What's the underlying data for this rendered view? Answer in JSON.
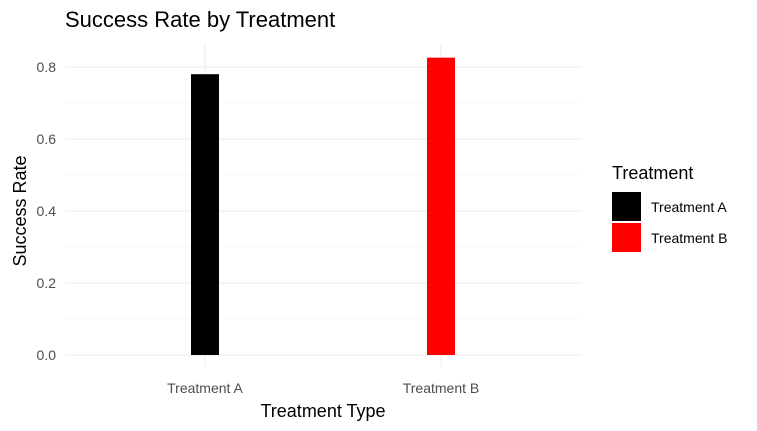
{
  "chart_data": {
    "type": "bar",
    "title": "Success Rate by Treatment",
    "xlabel": "Treatment Type",
    "ylabel": "Success Rate",
    "categories": [
      "Treatment A",
      "Treatment B"
    ],
    "values": [
      0.78,
      0.826
    ],
    "colors": [
      "#000000",
      "#ff0000"
    ],
    "ylim": [
      0,
      0.87
    ],
    "yticks": [
      0.0,
      0.2,
      0.4,
      0.6,
      0.8
    ],
    "ytick_labels": [
      "0.0",
      "0.2",
      "0.4",
      "0.6",
      "0.8"
    ],
    "grid": true,
    "legend": {
      "title": "Treatment",
      "placement": "right",
      "entries": [
        "Treatment A",
        "Treatment B"
      ]
    }
  }
}
